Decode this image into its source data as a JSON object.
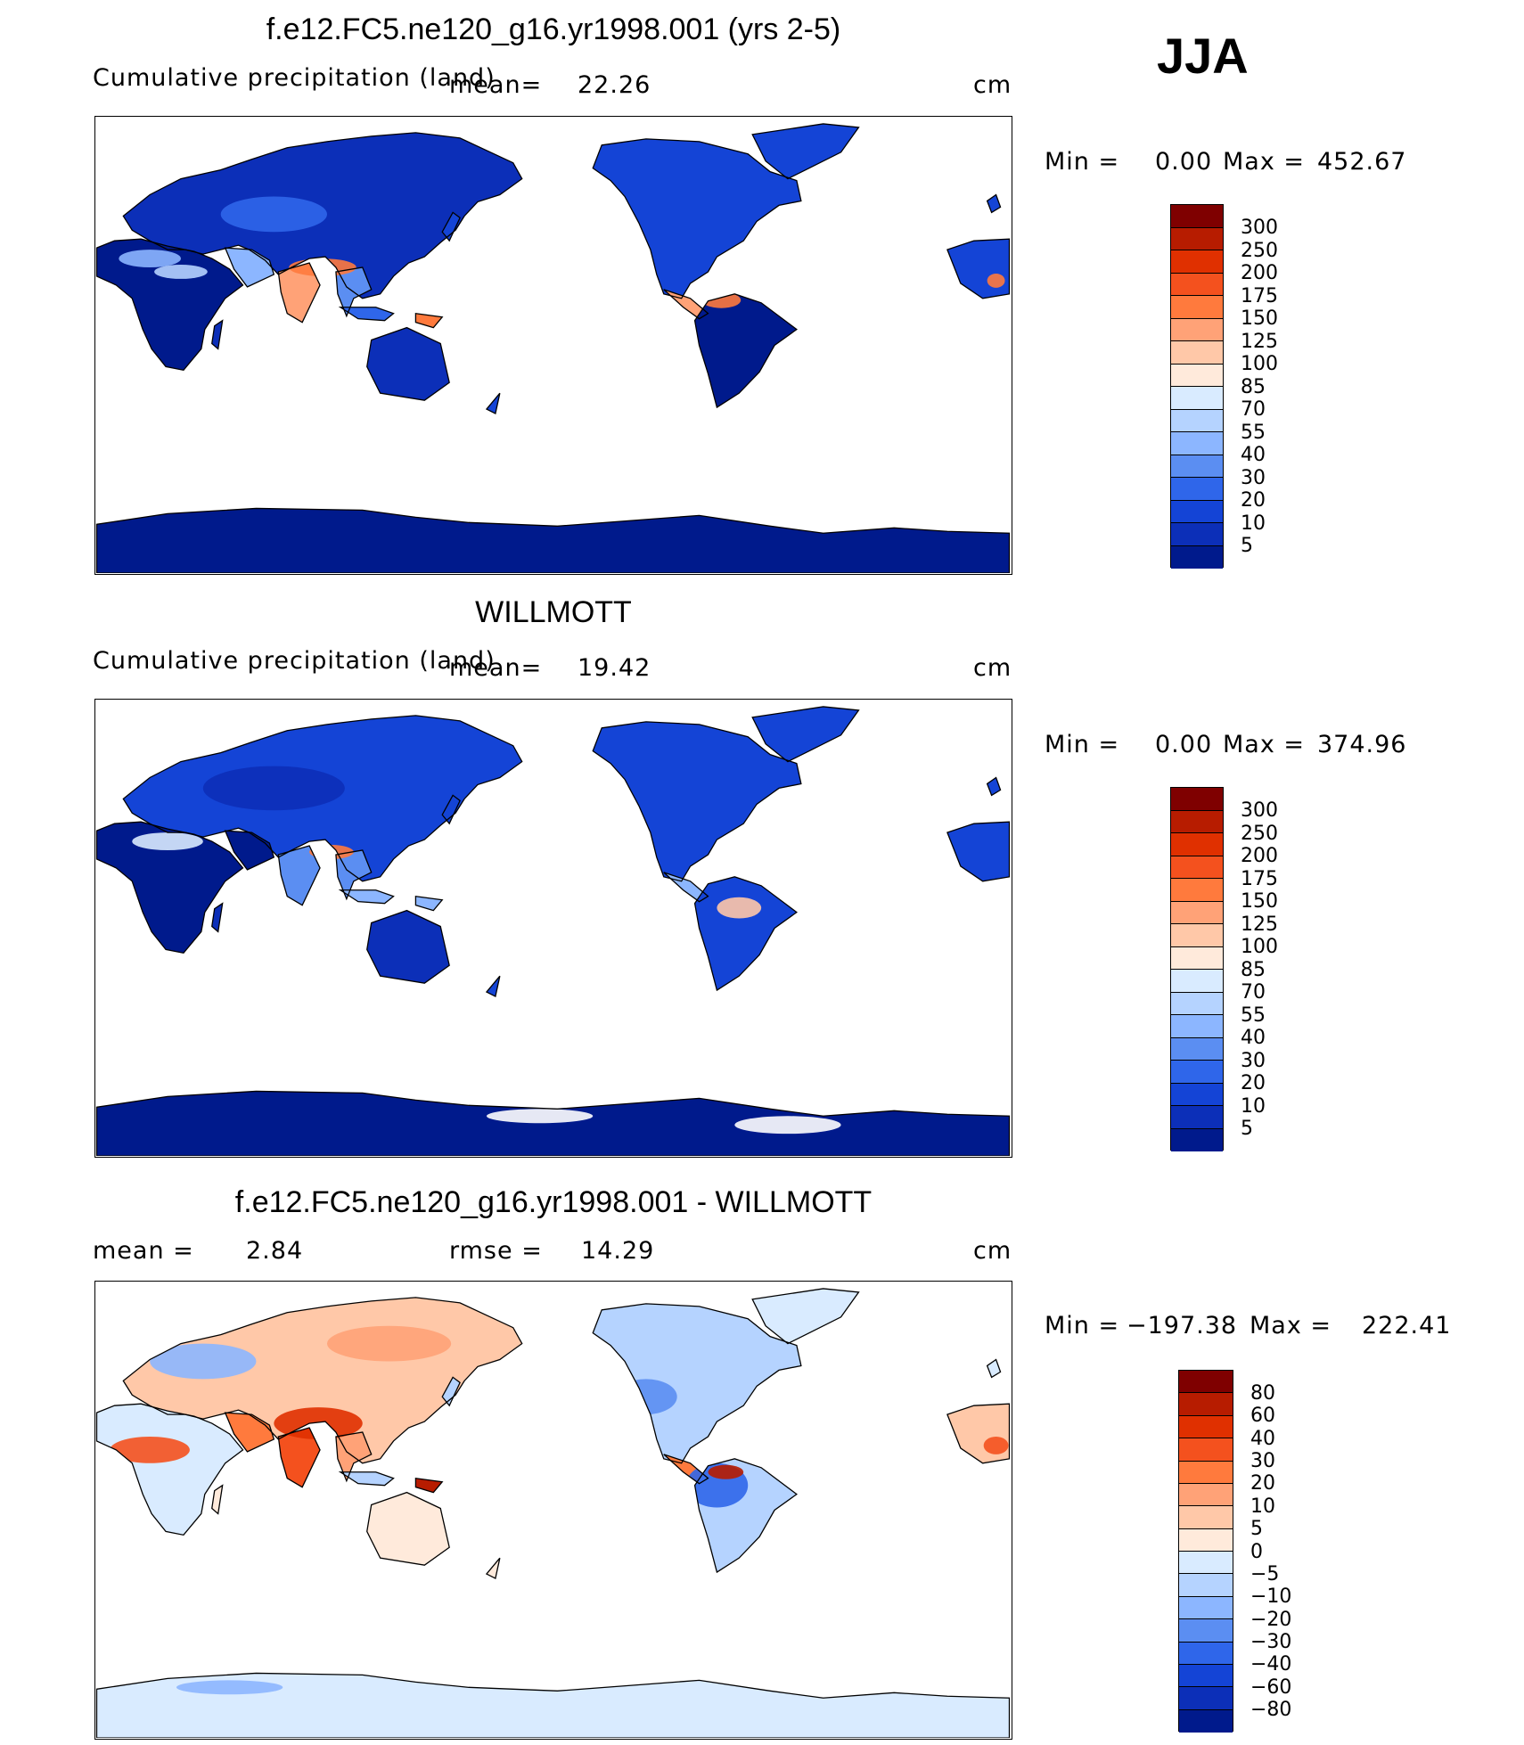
{
  "season": "JJA",
  "panels": [
    {
      "title": "f.e12.FC5.ne120_g16.yr1998.001 (yrs 2-5)",
      "subtitle": "Cumulative precipitation (land)",
      "mean_label": "mean=",
      "mean_value": "22.26",
      "units": "cm",
      "min_label": "Min  =",
      "min_value": "0.00",
      "max_label": "Max  =",
      "max_value": "452.67",
      "map": {
        "color_scheme": "absolute",
        "variant": "model"
      },
      "colorbar": {
        "ticks": [
          "300",
          "250",
          "200",
          "175",
          "150",
          "125",
          "100",
          "85",
          "70",
          "55",
          "40",
          "30",
          "20",
          "10",
          "5"
        ],
        "colors": [
          "#7f0000",
          "#b71c00",
          "#e03000",
          "#f4511e",
          "#ff7a3d",
          "#ffa277",
          "#ffc8a8",
          "#ffeadb",
          "#d9ebff",
          "#b5d3ff",
          "#8cb6ff",
          "#5b8ef2",
          "#2f66ea",
          "#1444d6",
          "#0c2fb8",
          "#001a8c"
        ]
      }
    },
    {
      "title": "WILLMOTT",
      "subtitle": "Cumulative precipitation (land)",
      "mean_label": "mean=",
      "mean_value": "19.42",
      "units": "cm",
      "min_label": "Min  =",
      "min_value": "0.00",
      "max_label": "Max  =",
      "max_value": "374.96",
      "map": {
        "color_scheme": "absolute",
        "variant": "obs"
      },
      "colorbar": {
        "ticks": [
          "300",
          "250",
          "200",
          "175",
          "150",
          "125",
          "100",
          "85",
          "70",
          "55",
          "40",
          "30",
          "20",
          "10",
          "5"
        ],
        "colors": [
          "#7f0000",
          "#b71c00",
          "#e03000",
          "#f4511e",
          "#ff7a3d",
          "#ffa277",
          "#ffc8a8",
          "#ffeadb",
          "#d9ebff",
          "#b5d3ff",
          "#8cb6ff",
          "#5b8ef2",
          "#2f66ea",
          "#1444d6",
          "#0c2fb8",
          "#001a8c"
        ]
      }
    },
    {
      "title": "f.e12.FC5.ne120_g16.yr1998.001 - WILLMOTT",
      "mean_label": "mean  =",
      "mean_value": "2.84",
      "rmse_label": "rmse  =",
      "rmse_value": "14.29",
      "units": "cm",
      "min_label": "Min  =",
      "min_value": "−197.38",
      "max_label": "Max  =",
      "max_value": "222.41",
      "map": {
        "color_scheme": "difference",
        "variant": "diff"
      },
      "colorbar": {
        "ticks": [
          "80",
          "60",
          "40",
          "30",
          "20",
          "10",
          "5",
          "0",
          "−5",
          "−10",
          "−20",
          "−30",
          "−40",
          "−60",
          "−80"
        ],
        "colors": [
          "#7f0000",
          "#b71c00",
          "#e03000",
          "#f4511e",
          "#ff7a3d",
          "#ffa277",
          "#ffc8a8",
          "#ffeadb",
          "#d9ebff",
          "#b5d3ff",
          "#8cb6ff",
          "#5b8ef2",
          "#2f66ea",
          "#1444d6",
          "#0c2fb8",
          "#001a8c"
        ]
      }
    }
  ]
}
